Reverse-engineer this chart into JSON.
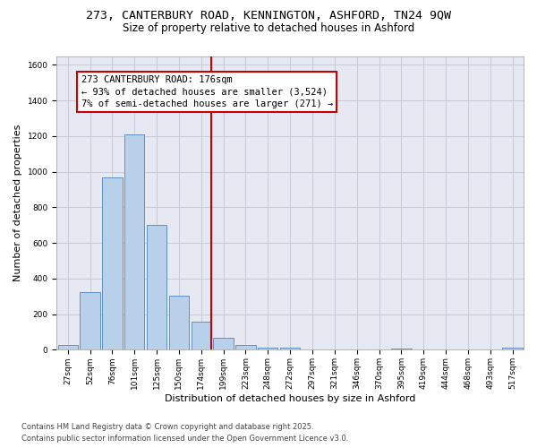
{
  "title_line1": "273, CANTERBURY ROAD, KENNINGTON, ASHFORD, TN24 9QW",
  "title_line2": "Size of property relative to detached houses in Ashford",
  "xlabel": "Distribution of detached houses by size in Ashford",
  "ylabel": "Number of detached properties",
  "bar_labels": [
    "27sqm",
    "52sqm",
    "76sqm",
    "101sqm",
    "125sqm",
    "150sqm",
    "174sqm",
    "199sqm",
    "223sqm",
    "248sqm",
    "272sqm",
    "297sqm",
    "321sqm",
    "346sqm",
    "370sqm",
    "395sqm",
    "419sqm",
    "444sqm",
    "468sqm",
    "493sqm",
    "517sqm"
  ],
  "bar_values": [
    25,
    325,
    970,
    1210,
    700,
    305,
    160,
    70,
    25,
    12,
    12,
    0,
    0,
    0,
    0,
    5,
    0,
    0,
    0,
    0,
    10
  ],
  "bar_color": "#b8d0ea",
  "bar_edge_color": "#6090c8",
  "vline_index": 6,
  "vline_color": "#cc0000",
  "annotation_text": "273 CANTERBURY ROAD: 176sqm\n← 93% of detached houses are smaller (3,524)\n7% of semi-detached houses are larger (271) →",
  "ylim": [
    0,
    1650
  ],
  "yticks": [
    0,
    200,
    400,
    600,
    800,
    1000,
    1200,
    1400,
    1600
  ],
  "grid_color": "#c8ccd8",
  "bg_color": "#e6e8f2",
  "footnote_line1": "Contains HM Land Registry data © Crown copyright and database right 2025.",
  "footnote_line2": "Contains public sector information licensed under the Open Government Licence v3.0.",
  "title_fontsize": 9.5,
  "subtitle_fontsize": 8.5,
  "axis_label_fontsize": 8,
  "tick_fontsize": 6.5,
  "annotation_fontsize": 7.5,
  "footnote_fontsize": 6.0
}
